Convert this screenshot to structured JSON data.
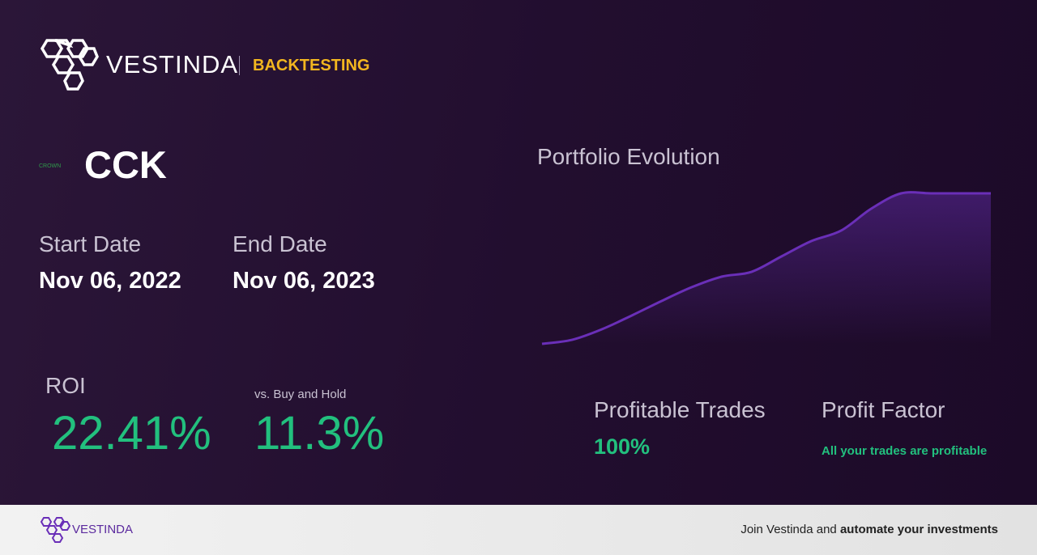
{
  "header": {
    "brand": "VESTINDA",
    "section": "BACKTESTING"
  },
  "asset": {
    "logo_text": "CROWN",
    "ticker": "CCK"
  },
  "start_date": {
    "label": "Start Date",
    "value": "Nov 06, 2022"
  },
  "end_date": {
    "label": "End Date",
    "value": "Nov 06, 2023"
  },
  "roi": {
    "label": "ROI",
    "value": "22.41%"
  },
  "buy_hold": {
    "label": "vs. Buy and Hold",
    "value": "11.3%"
  },
  "chart_data": {
    "type": "line",
    "title": "Portfolio Evolution",
    "color": "#6a2fb8",
    "values": [
      0,
      0.6,
      2.17,
      4.22,
      6.39,
      8.43,
      10.0,
      10.72,
      13.01,
      15.3,
      16.87,
      20.12,
      22.41,
      22.41,
      22.41,
      22.41
    ]
  },
  "profitable_trades": {
    "label": "Profitable Trades",
    "value": "100%"
  },
  "profit_factor": {
    "label": "Profit Factor",
    "note": "All your trades are profitable"
  },
  "footer": {
    "brand": "VESTINDA",
    "text": "Join Vestinda and",
    "bold": "automate your investments"
  }
}
